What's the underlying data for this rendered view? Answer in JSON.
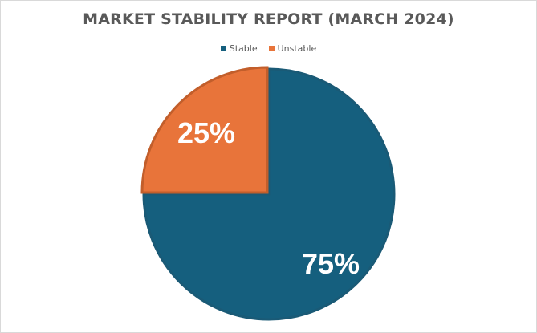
{
  "chart_data": {
    "type": "pie",
    "title": "MARKET STABILITY REPORT (MARCH 2024)",
    "legend_position": "top",
    "slices": [
      {
        "label": "Stable",
        "value": 75,
        "display": "75%",
        "color": "#155f7e",
        "border": "#1a5a76"
      },
      {
        "label": "Unstable",
        "value": 25,
        "display": "25%",
        "color": "#e8743a",
        "border": "#c25e2b"
      }
    ]
  }
}
